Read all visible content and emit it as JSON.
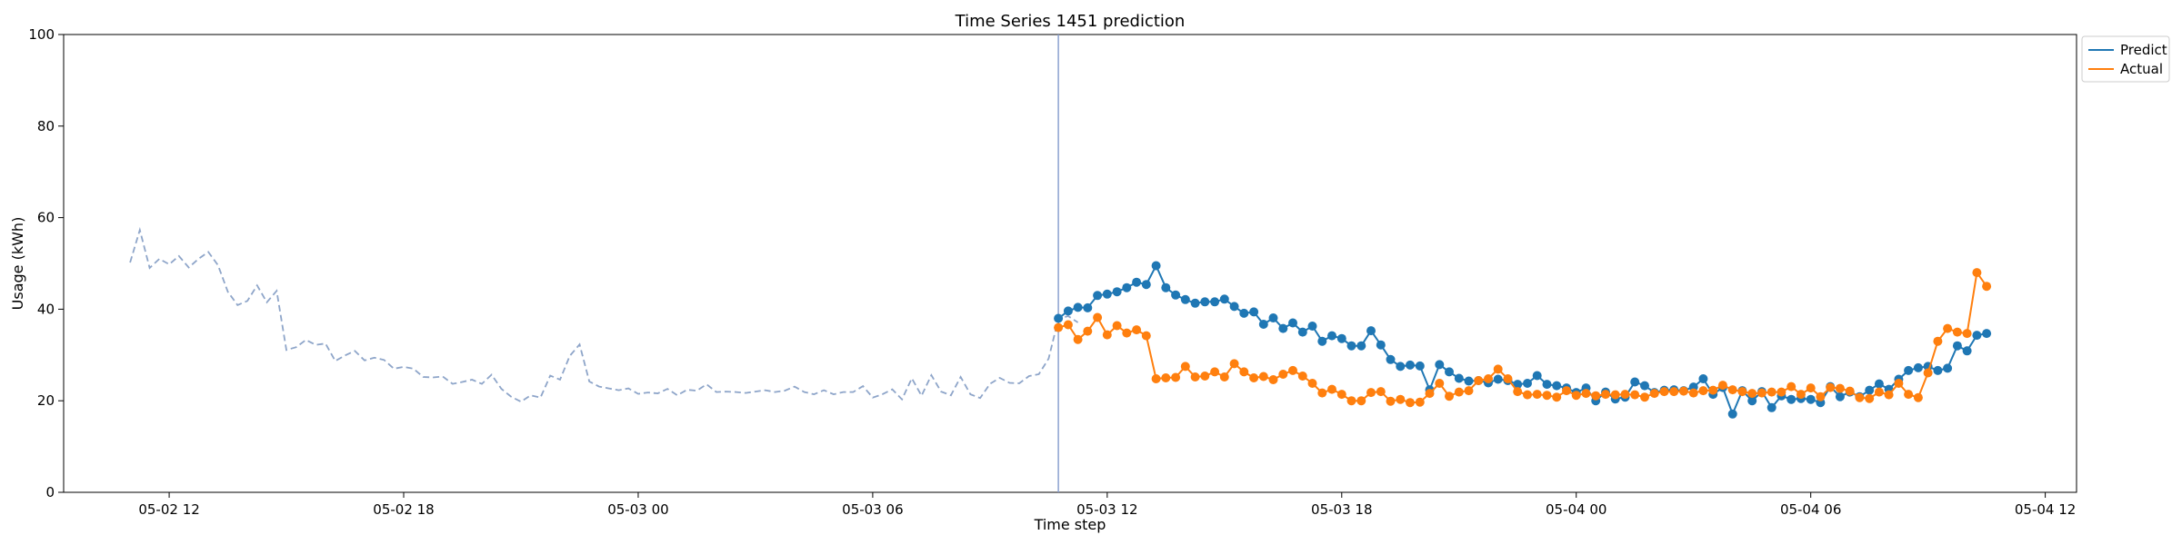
{
  "chart_data": {
    "type": "line",
    "title": "Time Series 1451 prediction",
    "xlabel": "Time step",
    "ylabel": "Usage (kWh)",
    "ylim": [
      0,
      100
    ],
    "xlim": [
      "2024-05-02 09:18",
      "2024-05-04 12:48"
    ],
    "x_ticks": [
      {
        "t": "2024-05-02 12:00",
        "label": "05-02 12"
      },
      {
        "t": "2024-05-02 18:00",
        "label": "05-02 18"
      },
      {
        "t": "2024-05-03 00:00",
        "label": "05-03 00"
      },
      {
        "t": "2024-05-03 06:00",
        "label": "05-03 06"
      },
      {
        "t": "2024-05-03 12:00",
        "label": "05-03 12"
      },
      {
        "t": "2024-05-03 18:00",
        "label": "05-03 18"
      },
      {
        "t": "2024-05-04 00:00",
        "label": "05-04 00"
      },
      {
        "t": "2024-05-04 06:00",
        "label": "05-04 06"
      },
      {
        "t": "2024-05-04 12:00",
        "label": "05-04 12"
      }
    ],
    "y_ticks": [
      0,
      20,
      40,
      60,
      80,
      100
    ],
    "forecast_start": "2024-05-03 10:45",
    "grid": false,
    "legend_position": "upper-right-outside",
    "history": {
      "start": "2024-05-02 11:00",
      "step_minutes": 15,
      "style": "dashed",
      "color": "#8ea5c9",
      "values": [
        50.2,
        57.3,
        49,
        51,
        49.8,
        51.6,
        49.1,
        51,
        52.5,
        49.6,
        43.8,
        40.9,
        41.8,
        45.2,
        41.5,
        44,
        31.1,
        31.7,
        33.3,
        32.2,
        32.5,
        28.7,
        29.9,
        30.9,
        28.8,
        29.4,
        28.9,
        27,
        27.4,
        27,
        25.2,
        25.1,
        25.3,
        23.7,
        24.1,
        24.6,
        23.7,
        25.7,
        22.6,
        20.9,
        19.8,
        21.2,
        20.7,
        25.5,
        24.6,
        29.8,
        32.3,
        24.2,
        23.1,
        22.7,
        22.3,
        22.7,
        21.5,
        21.8,
        21.6,
        22.6,
        21.2,
        22.4,
        22.2,
        23.6,
        21.9,
        22,
        21.9,
        21.7,
        22,
        22.3,
        21.9,
        22.2,
        23.1,
        21.9,
        21.4,
        22.3,
        21.4,
        21.9,
        21.9,
        23.2,
        20.7,
        21.4,
        22.5,
        20.3,
        24.9,
        21.1,
        25.6,
        22,
        21.2,
        25.2,
        21.4,
        20.6,
        23.7,
        25,
        23.9,
        23.8,
        25.4,
        25.8,
        29.2,
        37.9,
        38.5,
        37.1
      ]
    },
    "series": [
      {
        "name": "Predict",
        "color": "#1f77b4",
        "start": "2024-05-03 10:45",
        "step_minutes": 15,
        "values": [
          38,
          39.6,
          40.4,
          40.3,
          43,
          43.3,
          43.8,
          44.7,
          45.9,
          45.4,
          49.5,
          44.7,
          43.1,
          42.1,
          41.3,
          41.6,
          41.6,
          42.2,
          40.6,
          39.1,
          39.4,
          36.7,
          38.1,
          35.8,
          37,
          35,
          36.3,
          33,
          34.2,
          33.6,
          32,
          32,
          35.3,
          32.2,
          29,
          27.5,
          27.8,
          27.6,
          22.4,
          27.9,
          26.3,
          24.9,
          24.3,
          24.4,
          23.9,
          24.7,
          24.4,
          23.6,
          23.8,
          25.5,
          23.6,
          23.3,
          22.8,
          21.8,
          22.8,
          20,
          21.9,
          20.4,
          20.8,
          24.1,
          23.3,
          21.8,
          22.3,
          22.4,
          22.2,
          23,
          24.8,
          21.4,
          22.9,
          17.1,
          22.2,
          20,
          22,
          18.5,
          21.1,
          20.3,
          20.5,
          20.3,
          19.6,
          23.1,
          20.9,
          21.9,
          20.9,
          22.3,
          23.7,
          22.5,
          24.7,
          26.6,
          27.2,
          27.5,
          26.6,
          27.1,
          32,
          30.9,
          34.3,
          34.7
        ]
      },
      {
        "name": "Actual",
        "color": "#ff7f0e",
        "start": "2024-05-03 10:45",
        "step_minutes": 15,
        "values": [
          36,
          36.6,
          33.4,
          35.2,
          38.2,
          34.4,
          36.4,
          34.8,
          35.5,
          34.2,
          24.8,
          25,
          25.1,
          27.5,
          25.2,
          25.4,
          26.3,
          25.2,
          28.1,
          26.3,
          25,
          25.3,
          24.6,
          25.8,
          26.6,
          25.4,
          23.8,
          21.7,
          22.5,
          21.4,
          20,
          20,
          21.8,
          22,
          19.9,
          20.3,
          19.6,
          19.7,
          21.6,
          23.8,
          21,
          21.9,
          22.2,
          24.4,
          24.8,
          26.9,
          24.8,
          22,
          21.3,
          21.4,
          21.2,
          20.8,
          22.2,
          21.2,
          21.6,
          21.1,
          21.4,
          21.3,
          21.4,
          21.3,
          20.8,
          21.6,
          22,
          22,
          22.1,
          21.7,
          22.2,
          22.3,
          23.4,
          22.4,
          22,
          21.6,
          21.7,
          21.9,
          21.9,
          23.1,
          21.4,
          22.8,
          20.9,
          22.9,
          22.7,
          22.1,
          20.7,
          20.5,
          21.9,
          21.3,
          23.8,
          21.4,
          20.7,
          26.1,
          33,
          35.8,
          35,
          34.7,
          48,
          45
        ]
      }
    ]
  }
}
